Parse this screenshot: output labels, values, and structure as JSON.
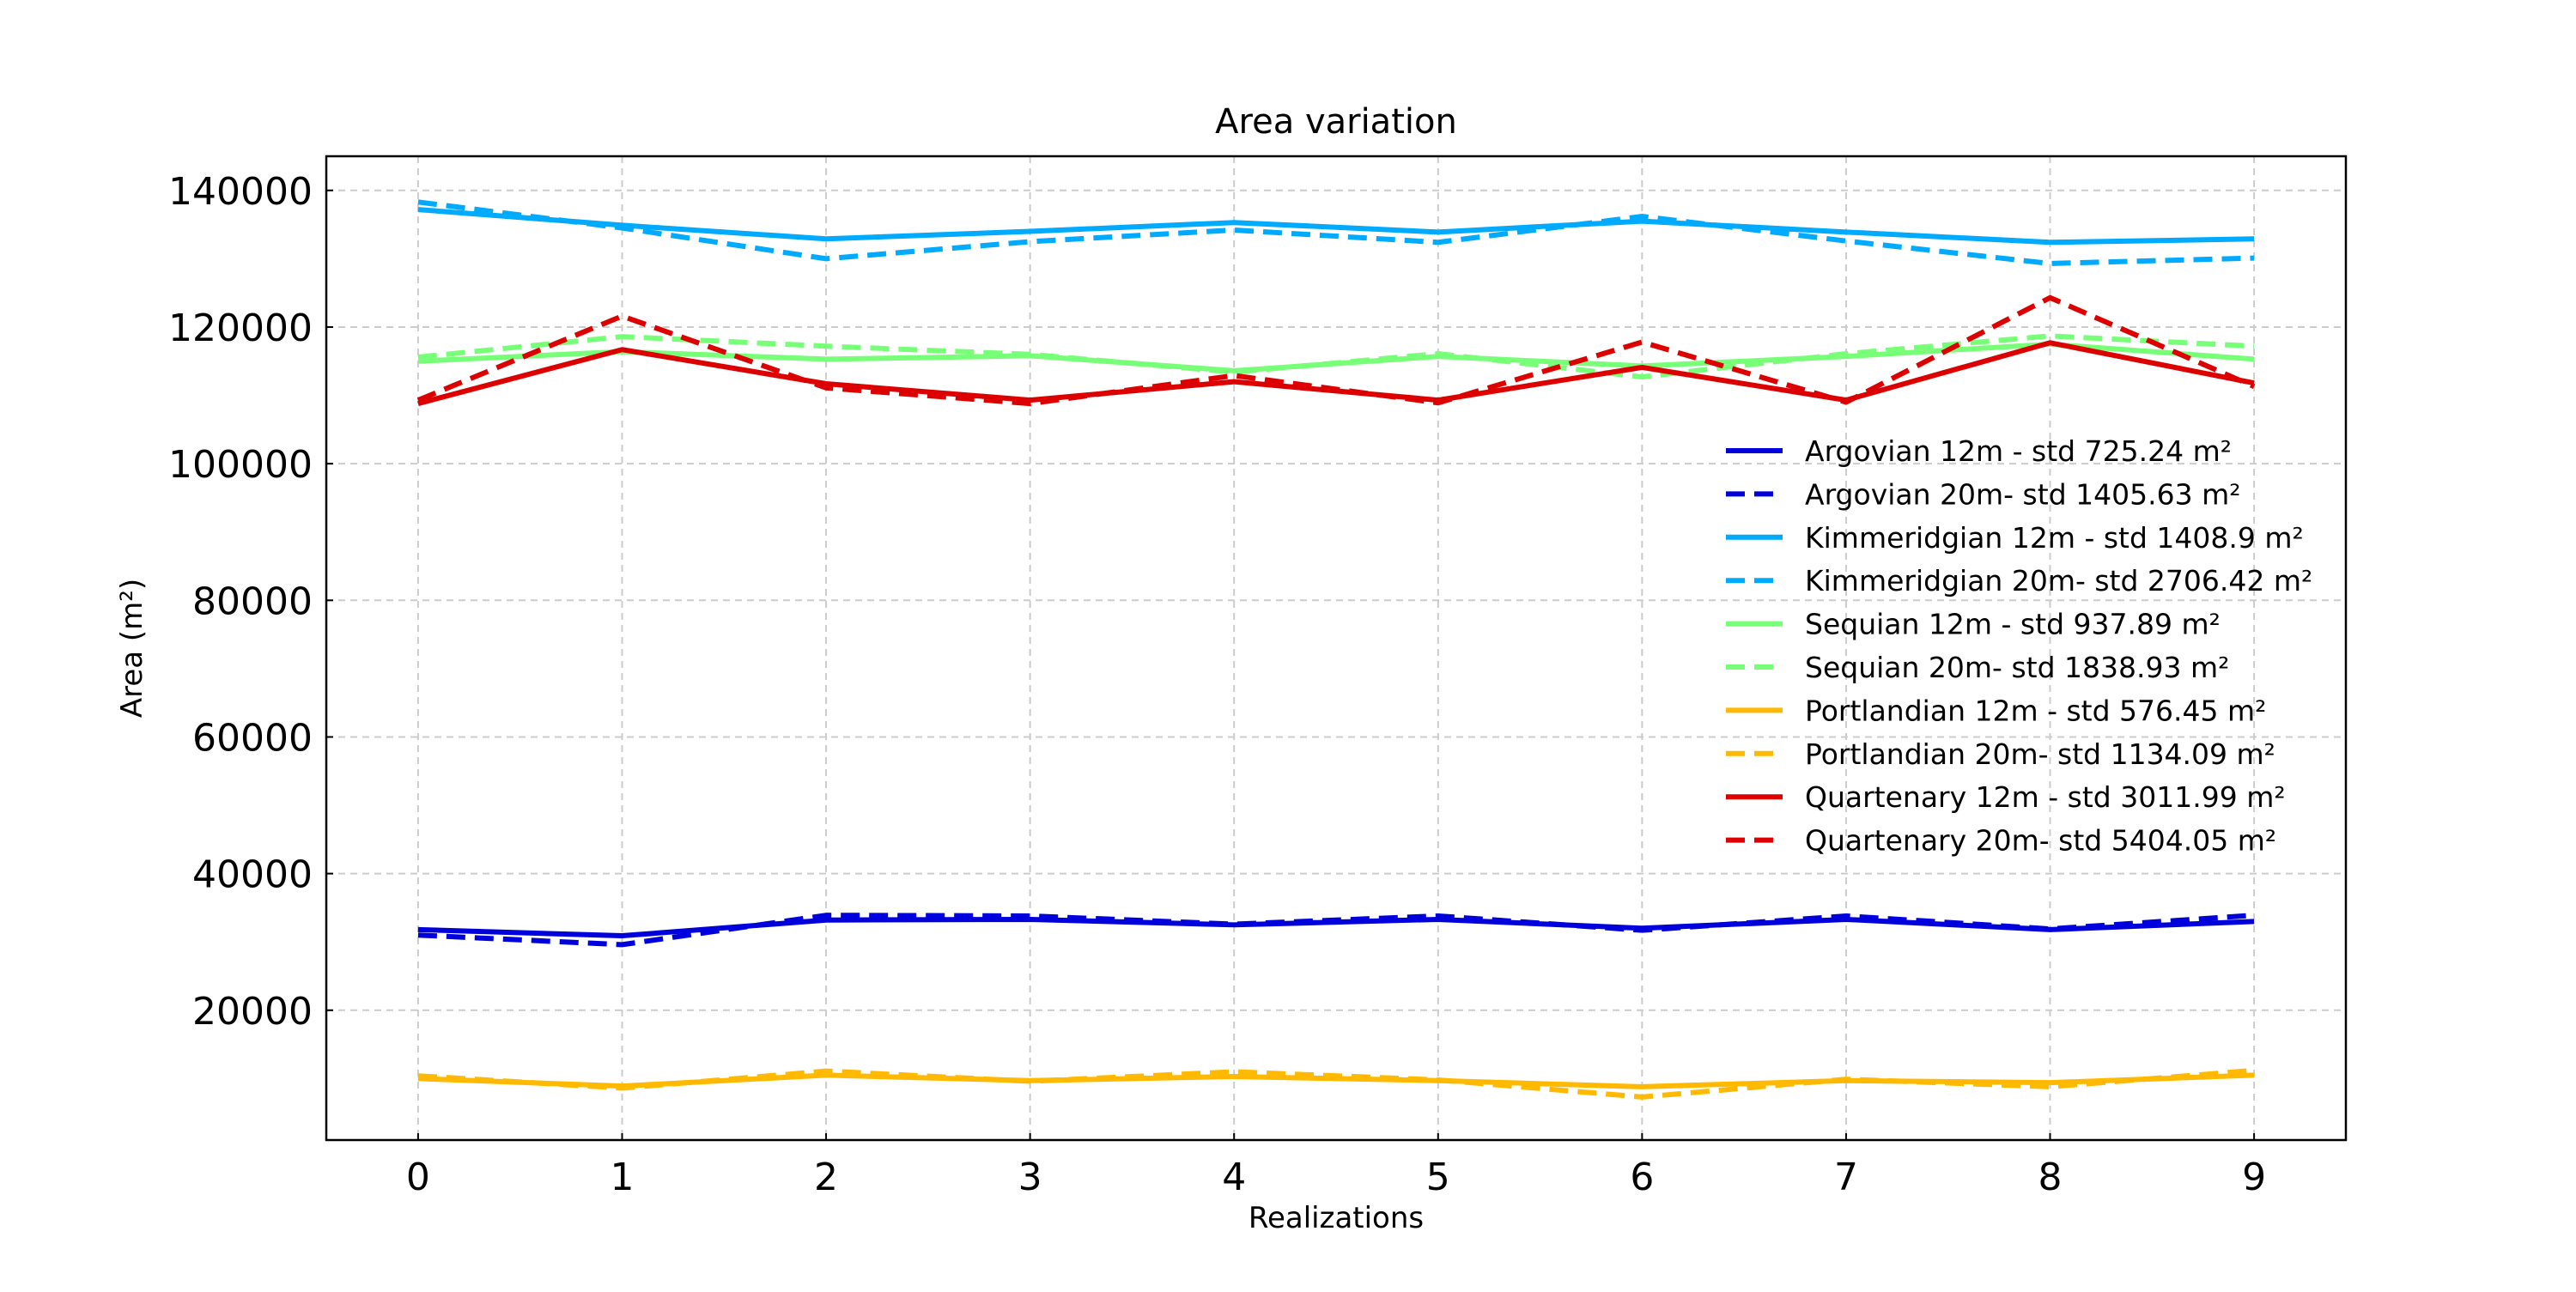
{
  "chart_data": {
    "type": "line",
    "title": "Area variation",
    "xlabel": "Realizations",
    "ylabel": "Area (m²)",
    "x": [
      0,
      1,
      2,
      3,
      4,
      5,
      6,
      7,
      8,
      9
    ],
    "x_ticks": [
      "0",
      "1",
      "2",
      "3",
      "4",
      "5",
      "6",
      "7",
      "8",
      "9"
    ],
    "y_ticks": [
      "20000",
      "40000",
      "60000",
      "80000",
      "100000",
      "120000",
      "140000"
    ],
    "y_tick_values": [
      20000,
      40000,
      60000,
      80000,
      100000,
      120000,
      140000
    ],
    "xlim": [
      -0.45,
      9.45
    ],
    "ylim": [
      1000,
      145000
    ],
    "grid": true,
    "legend_position": "right",
    "series": [
      {
        "name": "Argovian 12m - std 725.24 m²",
        "color": "#0000dd",
        "style": "solid",
        "values": [
          31800,
          30900,
          33200,
          33300,
          32500,
          33300,
          32000,
          33300,
          31800,
          33000
        ]
      },
      {
        "name": "Argovian 20m- std 1405.63 m²",
        "color": "#0000dd",
        "style": "dashed",
        "values": [
          31000,
          29600,
          33900,
          33800,
          32600,
          33800,
          31700,
          33800,
          31900,
          33900
        ]
      },
      {
        "name": "Kimmeridgian 12m - std 1408.9 m²",
        "color": "#00aaff",
        "style": "solid",
        "values": [
          137200,
          134900,
          132900,
          134000,
          135300,
          133900,
          135500,
          133900,
          132400,
          132900
        ]
      },
      {
        "name": "Kimmeridgian 20m- std 2706.42 m²",
        "color": "#00aaff",
        "style": "dashed",
        "values": [
          138300,
          134500,
          130000,
          132500,
          134200,
          132400,
          136200,
          132600,
          129300,
          130100
        ]
      },
      {
        "name": "Sequian 12m - std 937.89 m²",
        "color": "#77ff77",
        "style": "solid",
        "values": [
          115000,
          116400,
          115300,
          115800,
          113600,
          115700,
          114300,
          115700,
          117500,
          115300
        ]
      },
      {
        "name": "Sequian 20m- std 1838.93 m²",
        "color": "#77ff77",
        "style": "dashed",
        "values": [
          115600,
          118600,
          117200,
          116000,
          113400,
          116100,
          112700,
          116100,
          118700,
          117200
        ]
      },
      {
        "name": "Portlandian 12m - std 576.45 m²",
        "color": "#ffb900",
        "style": "solid",
        "values": [
          10000,
          8900,
          10500,
          9700,
          10300,
          9700,
          8800,
          9700,
          9400,
          10500
        ]
      },
      {
        "name": "Portlandian 20m- std 1134.09 m²",
        "color": "#ffb900",
        "style": "dashed",
        "values": [
          10400,
          8600,
          11100,
          9600,
          11000,
          9800,
          7300,
          9900,
          8800,
          11200
        ]
      },
      {
        "name": "Quartenary 12m - std 3011.99 m²",
        "color": "#dd0000",
        "style": "solid",
        "values": [
          108800,
          116700,
          111700,
          109300,
          112000,
          109300,
          114100,
          109300,
          117700,
          111800
        ]
      },
      {
        "name": "Quartenary 20m- std 5404.05 m²",
        "color": "#dd0000",
        "style": "dashed",
        "values": [
          109300,
          121600,
          111100,
          108800,
          112900,
          108900,
          117800,
          109000,
          124300,
          111300
        ]
      }
    ]
  }
}
